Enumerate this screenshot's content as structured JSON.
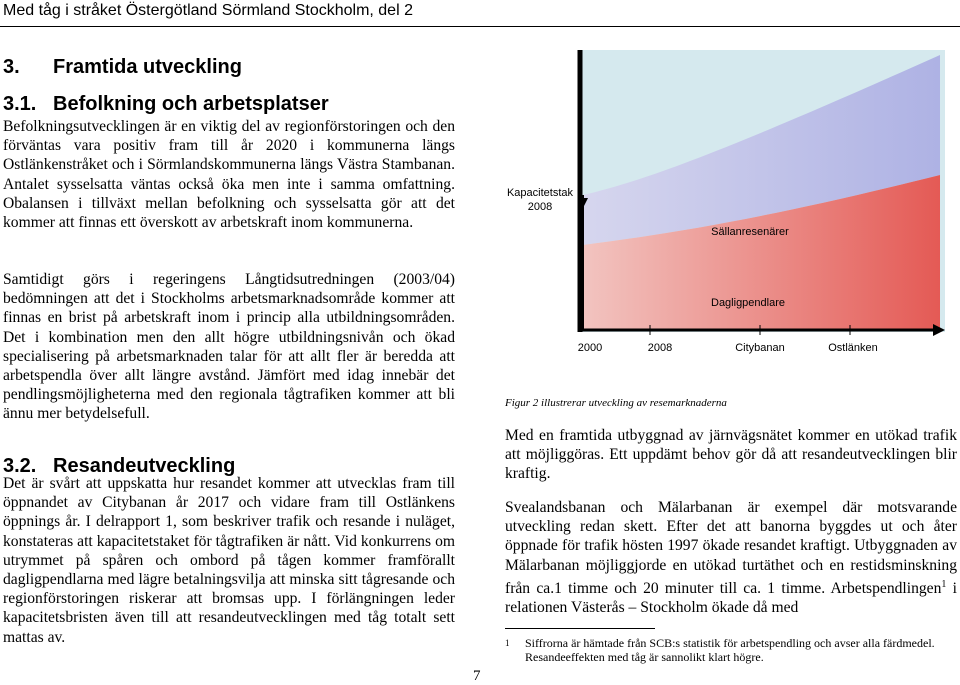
{
  "header": {
    "title": "Med tåg i stråket Östergötland Sörmland Stockholm, del 2"
  },
  "heading": {
    "number": "3.",
    "title": "Framtida utveckling"
  },
  "section_1": {
    "number": "3.1.",
    "title": "Befolkning och arbetsplatser",
    "paragraphs": [
      "Befolkningsutvecklingen är en viktig del av regionförstoringen och den förväntas vara positiv fram till år 2020 i kommunerna längs Ostlänkenstråket och i Sörmlandskommunerna längs Västra Stambanan. Antalet sysselsatta väntas också öka men inte i samma omfattning. Obalansen i tillväxt mellan befolkning och sysselsatta gör att det kommer att finnas ett överskott av arbetskraft inom kommunerna.",
      "Samtidigt görs i regeringens Långtidsutredningen (2003/04) bedömningen att det i Stockholms arbetsmarknadsområde kommer att finnas en brist på arbetskraft inom i princip alla utbildningsområden. Det i kombination men den allt högre utbildningsnivån och ökad specialisering på arbetsmarknaden talar för att allt fler är beredda att arbetspendla över allt längre avstånd. Jämfört med idag innebär det pendlingsmöjligheterna med den regionala tågtrafiken kommer att bli ännu mer betydelsefull."
    ]
  },
  "section_2": {
    "number": "3.2.",
    "title": "Resandeutveckling",
    "paragraphs": [
      "Det är svårt att uppskatta hur resandet kommer att utvecklas fram till öppnandet av Citybanan år 2017 och vidare fram till Ostlänkens öppnings år. I delrapport 1, som beskriver trafik och resande i nuläget, konstateras att kapacitetstaket för tågtrafiken är nått. Vid konkurrens om utrymmet på spåren och ombord på tågen kommer framförallt dagligpendlarna med lägre betalningsvilja att minska sitt tågresande och regionförstoringen riskerar att bromsas upp. I förlängningen leder kapacitetsbristen även till att resandeutvecklingen med tåg totalt sett mattas av."
    ]
  },
  "figure": {
    "capacity_label": "Kapacitetstak 2008",
    "upper_area_label": "Sällanresenärer",
    "lower_area_label": "Dagligpendlare",
    "x_labels": [
      "2000",
      "2008",
      "Citybanan",
      "Ostlänken"
    ],
    "caption": "Figur 2 illustrerar utveckling av resemarknaderna"
  },
  "right_column": {
    "paragraphs": [
      "Med en framtida utbyggnad av järnvägsnätet kommer en utökad trafik att möjliggöras. Ett uppdämt behov gör då att resandeutvecklingen blir kraftig."
    ],
    "note_paragraph": {
      "before": "Svealandsbanan och Mälarbanan är exempel där motsvarande utveckling redan skett. Efter det att banorna byggdes ut och åter öppnade för trafik hösten 1997 ökade resandet kraftigt. Utbyggnaden av Mälarbanan möjliggjorde en utökad turtäthet och en restidsminskning från ca.1 timme och 20 minuter till ca. 1 timme. Arbetspendlingen",
      "ref": "1",
      "after": " i relationen Västerås – Stockholm ökade då med"
    }
  },
  "footnote": {
    "number": "1",
    "text": "Siffrorna är hämtade från SCB:s statistik för arbetspendling och avser alla färdmedel. Resandeeffekten med tåg är sannolikt klart högre."
  },
  "page_number": "7"
}
